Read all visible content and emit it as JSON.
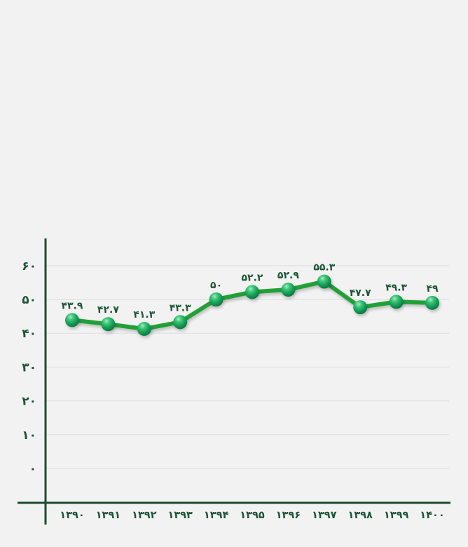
{
  "page": {
    "background": "#f2f2f2"
  },
  "chart_data": {
    "type": "line",
    "title": "",
    "xlabel": "",
    "ylabel": "",
    "categories": [
      "۱۳۹۰",
      "۱۳۹۱",
      "۱۳۹۲",
      "۱۳۹۳",
      "۱۳۹۴",
      "۱۳۹۵",
      "۱۳۹۶",
      "۱۳۹۷",
      "۱۳۹۸",
      "۱۳۹۹",
      "۱۴۰۰"
    ],
    "values": [
      43.9,
      42.7,
      41.3,
      43.3,
      50,
      52.2,
      52.9,
      55.3,
      47.7,
      49.3,
      49
    ],
    "point_labels": [
      "۴۳.۹",
      "۴۲.۷",
      "۴۱.۳",
      "۴۳.۳",
      "۵۰",
      "۵۲.۲",
      "۵۲.۹",
      "۵۵.۳",
      "۴۷.۷",
      "۴۹.۳",
      "۴۹"
    ],
    "y_ticks": {
      "values": [
        0,
        10,
        20,
        30,
        40,
        50,
        60
      ],
      "labels": [
        "۰",
        "۱۰",
        "۲۰",
        "۳۰",
        "۴۰",
        "۵۰",
        "۶۰"
      ]
    },
    "ylim": [
      0,
      65
    ],
    "grid": true,
    "legend": "none",
    "colors": {
      "line": "#23a038",
      "marker_highlight": "#a9ecc4",
      "marker_light": "#45c77d",
      "marker_mid": "#16a156",
      "marker_dark": "#0a6a3c",
      "axis": "#1c4c30",
      "tick_text": "#1d5637",
      "data_label_text": "#1d5637",
      "gridline": "#e0e0e3",
      "background": "#f2f2f2"
    }
  }
}
